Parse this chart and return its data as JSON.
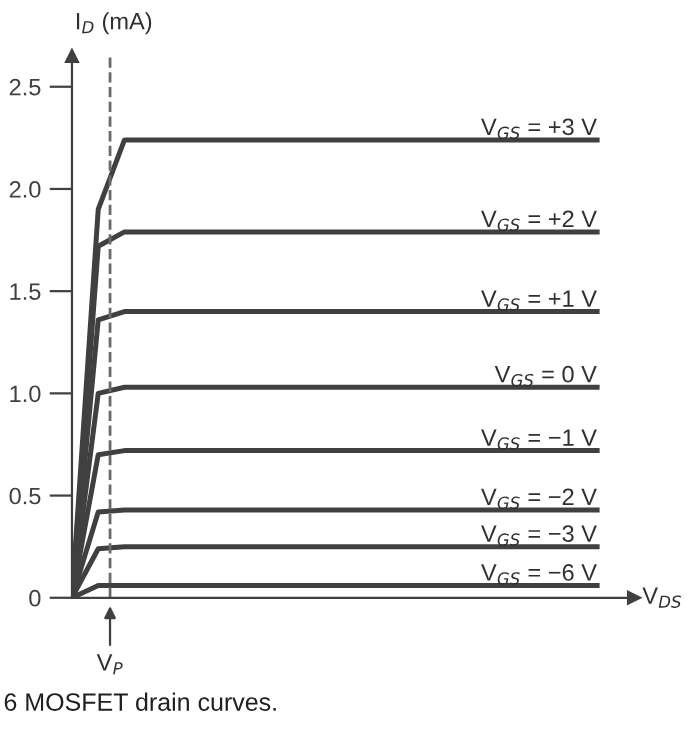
{
  "chart_data": {
    "type": "line",
    "xlabel": "V$_{DS}$",
    "ylabel": "I$_{D}$ (mA)",
    "categories": [
      null,
      null,
      null,
      null,
      null,
      null,
      null,
      null,
      null,
      null,
      null,
      null,
      null,
      null,
      null,
      null,
      null,
      null,
      null,
      null,
      null
    ],
    "ylim": [
      0,
      2.65
    ],
    "yticks": [
      {
        "value": 0,
        "label": "0"
      },
      {
        "value": 0.5,
        "label": "0.5"
      },
      {
        "value": 1.0,
        "label": "1.0"
      },
      {
        "value": 1.5,
        "label": "1.5"
      },
      {
        "value": 2.0,
        "label": "2.0"
      },
      {
        "value": 2.5,
        "label": "2.5"
      }
    ],
    "grid": false,
    "legend": false,
    "marker": "none",
    "line_style": "solid",
    "ref_lines": [
      {
        "axis": "x",
        "label": "V$_{P}$",
        "color": "#6a6a6a",
        "line_style": "dashed"
      }
    ],
    "annotations": [
      "6 MOSFET drain curves."
    ],
    "series": [
      {
        "name": "V$_{GS}$ = +3 V",
        "color": "#404040",
        "values": [
          0,
          1.9,
          2.24,
          2.24,
          2.24,
          2.24,
          2.24,
          2.24,
          2.24,
          2.24,
          2.24,
          2.24,
          2.24,
          2.24,
          2.24,
          2.24,
          2.24,
          2.24,
          2.24,
          2.24,
          2.24
        ]
      },
      {
        "name": "V$_{GS}$ = +2 V",
        "color": "#404040",
        "values": [
          0,
          1.72,
          1.79,
          1.79,
          1.79,
          1.79,
          1.79,
          1.79,
          1.79,
          1.79,
          1.79,
          1.79,
          1.79,
          1.79,
          1.79,
          1.79,
          1.79,
          1.79,
          1.79,
          1.79,
          1.79
        ]
      },
      {
        "name": "V$_{GS}$ = +1 V",
        "color": "#404040",
        "values": [
          0,
          1.36,
          1.4,
          1.4,
          1.4,
          1.4,
          1.4,
          1.4,
          1.4,
          1.4,
          1.4,
          1.4,
          1.4,
          1.4,
          1.4,
          1.4,
          1.4,
          1.4,
          1.4,
          1.4,
          1.4
        ]
      },
      {
        "name": "V$_{GS}$ = 0 V",
        "color": "#404040",
        "values": [
          0,
          1.0,
          1.03,
          1.03,
          1.03,
          1.03,
          1.03,
          1.03,
          1.03,
          1.03,
          1.03,
          1.03,
          1.03,
          1.03,
          1.03,
          1.03,
          1.03,
          1.03,
          1.03,
          1.03,
          1.03
        ]
      },
      {
        "name": "V$_{GS}$ = −1 V",
        "color": "#404040",
        "values": [
          0,
          0.7,
          0.72,
          0.72,
          0.72,
          0.72,
          0.72,
          0.72,
          0.72,
          0.72,
          0.72,
          0.72,
          0.72,
          0.72,
          0.72,
          0.72,
          0.72,
          0.72,
          0.72,
          0.72,
          0.72
        ]
      },
      {
        "name": "V$_{GS}$ = −2 V",
        "color": "#404040",
        "values": [
          0,
          0.42,
          0.43,
          0.43,
          0.43,
          0.43,
          0.43,
          0.43,
          0.43,
          0.43,
          0.43,
          0.43,
          0.43,
          0.43,
          0.43,
          0.43,
          0.43,
          0.43,
          0.43,
          0.43,
          0.43
        ]
      },
      {
        "name": "V$_{GS}$ = −3 V",
        "color": "#404040",
        "values": [
          0,
          0.24,
          0.25,
          0.25,
          0.25,
          0.25,
          0.25,
          0.25,
          0.25,
          0.25,
          0.25,
          0.25,
          0.25,
          0.25,
          0.25,
          0.25,
          0.25,
          0.25,
          0.25,
          0.25,
          0.25
        ]
      },
      {
        "name": "V$_{GS}$ = −6 V",
        "color": "#404040",
        "values": [
          0,
          0.06,
          0.06,
          0.06,
          0.06,
          0.06,
          0.06,
          0.06,
          0.06,
          0.06,
          0.06,
          0.06,
          0.06,
          0.06,
          0.06,
          0.06,
          0.06,
          0.06,
          0.06,
          0.06,
          0.06
        ]
      }
    ]
  }
}
